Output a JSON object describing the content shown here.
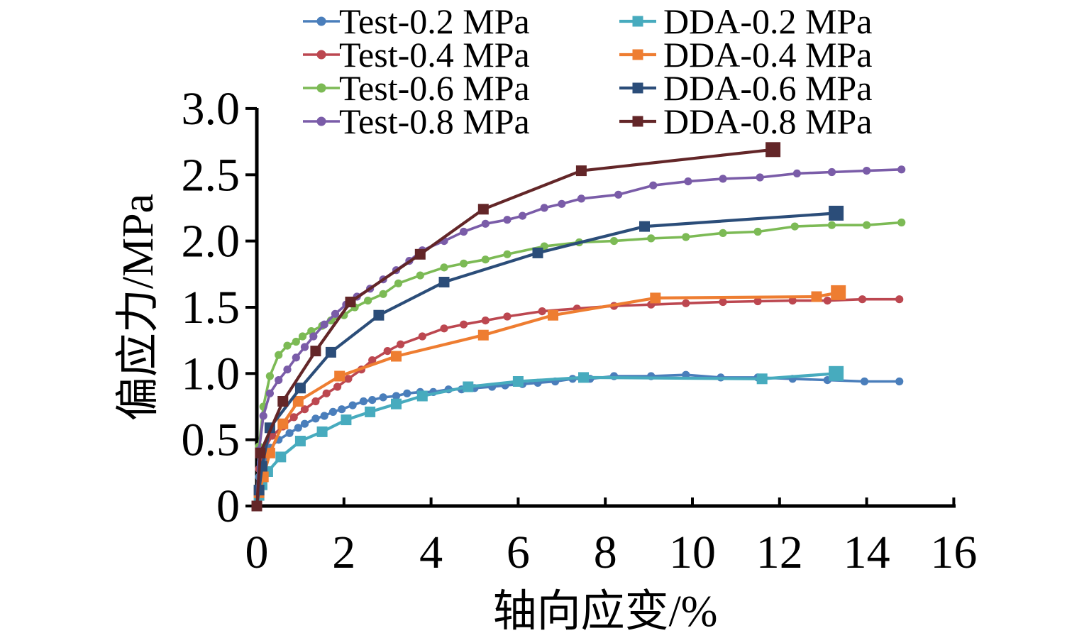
{
  "chart_data": {
    "type": "line",
    "title": "",
    "xlabel": "轴向应变/%",
    "ylabel": "偏应力/MPa",
    "xlim": [
      0,
      16
    ],
    "ylim": [
      0,
      3.0
    ],
    "xticks": [
      0,
      2,
      4,
      6,
      8,
      10,
      12,
      14,
      16
    ],
    "ytick_values": [
      0,
      0.5,
      1.0,
      1.5,
      2.0,
      2.5,
      3.0
    ],
    "ytick_labels": [
      "0",
      "0.5",
      "1.0",
      "1.5",
      "2.0",
      "2.5",
      "3.0"
    ],
    "grid": false,
    "legend_position": "top-center",
    "legend_columns": 2,
    "axis_color": "#000000",
    "series": [
      {
        "name": "Test-0.2 MPa",
        "color": "#4A7EBB",
        "marker": "circle",
        "x": [
          0,
          0.05,
          0.15,
          0.3,
          0.5,
          0.75,
          0.95,
          1.1,
          1.35,
          1.55,
          1.75,
          1.95,
          2.2,
          2.45,
          2.65,
          2.9,
          3.2,
          3.45,
          3.75,
          4.05,
          4.4,
          4.7,
          5.0,
          5.4,
          5.7,
          6.1,
          6.45,
          6.85,
          7.25,
          7.65,
          8.2,
          9.05,
          9.85,
          10.65,
          11.5,
          12.3,
          13.1,
          13.95,
          14.75
        ],
        "y": [
          0,
          0.22,
          0.35,
          0.44,
          0.5,
          0.55,
          0.59,
          0.62,
          0.66,
          0.68,
          0.71,
          0.73,
          0.76,
          0.79,
          0.8,
          0.82,
          0.83,
          0.85,
          0.86,
          0.86,
          0.88,
          0.88,
          0.89,
          0.9,
          0.91,
          0.92,
          0.93,
          0.94,
          0.96,
          0.96,
          0.98,
          0.98,
          0.99,
          0.97,
          0.97,
          0.96,
          0.95,
          0.94,
          0.94
        ]
      },
      {
        "name": "DDA-0.2 MPa",
        "color": "#47ABBE",
        "marker": "square",
        "x": [
          0,
          0.05,
          0.12,
          0.25,
          0.55,
          1.0,
          1.5,
          2.05,
          2.6,
          3.2,
          3.8,
          4.85,
          6.0,
          7.5,
          11.6,
          13.3
        ],
        "y": [
          0,
          0.08,
          0.16,
          0.26,
          0.37,
          0.49,
          0.56,
          0.65,
          0.71,
          0.77,
          0.83,
          0.9,
          0.94,
          0.97,
          0.96,
          1.0
        ]
      },
      {
        "name": "Test-0.4 MPa",
        "color": "#BC4750",
        "marker": "circle",
        "x": [
          0,
          0.05,
          0.15,
          0.35,
          0.6,
          0.85,
          1.1,
          1.35,
          1.6,
          1.85,
          2.1,
          2.4,
          2.65,
          3.0,
          3.3,
          3.8,
          4.3,
          4.75,
          5.25,
          5.75,
          6.55,
          7.35,
          8.2,
          9.05,
          9.85,
          10.7,
          11.5,
          12.3,
          13.1,
          13.9,
          14.75
        ],
        "y": [
          0,
          0.28,
          0.42,
          0.53,
          0.6,
          0.67,
          0.73,
          0.79,
          0.85,
          0.9,
          0.96,
          1.03,
          1.1,
          1.17,
          1.22,
          1.28,
          1.34,
          1.37,
          1.4,
          1.43,
          1.47,
          1.49,
          1.51,
          1.52,
          1.53,
          1.54,
          1.545,
          1.55,
          1.55,
          1.56,
          1.56
        ]
      },
      {
        "name": "DDA-0.4 MPa",
        "color": "#EE7D31",
        "marker": "square",
        "x": [
          0,
          0.05,
          0.15,
          0.3,
          0.6,
          0.95,
          1.9,
          3.2,
          5.2,
          6.8,
          9.15,
          12.85,
          13.35
        ],
        "y": [
          0,
          0.1,
          0.22,
          0.4,
          0.62,
          0.79,
          0.98,
          1.13,
          1.29,
          1.44,
          1.57,
          1.58,
          1.61
        ]
      },
      {
        "name": "Test-0.6 MPa",
        "color": "#7CBA55",
        "marker": "circle",
        "x": [
          0,
          0.05,
          0.15,
          0.3,
          0.5,
          0.7,
          0.9,
          1.05,
          1.25,
          1.5,
          1.7,
          2.0,
          2.25,
          2.55,
          2.9,
          3.25,
          3.75,
          4.3,
          4.75,
          5.25,
          5.75,
          6.6,
          7.4,
          8.2,
          9.05,
          9.85,
          10.7,
          11.5,
          12.35,
          13.2,
          14.0,
          14.8
        ],
        "y": [
          0,
          0.45,
          0.75,
          0.98,
          1.14,
          1.21,
          1.24,
          1.28,
          1.32,
          1.36,
          1.4,
          1.44,
          1.5,
          1.55,
          1.6,
          1.68,
          1.74,
          1.8,
          1.83,
          1.86,
          1.9,
          1.96,
          1.99,
          2.0,
          2.02,
          2.03,
          2.06,
          2.07,
          2.11,
          2.12,
          2.12,
          2.14
        ]
      },
      {
        "name": "DDA-0.6 MPa",
        "color": "#2B4D79",
        "marker": "square",
        "x": [
          0,
          0.05,
          0.12,
          0.3,
          1.0,
          1.7,
          2.8,
          4.3,
          6.45,
          8.9,
          13.3
        ],
        "y": [
          0,
          0.12,
          0.3,
          0.59,
          0.89,
          1.16,
          1.44,
          1.69,
          1.91,
          2.11,
          2.21
        ]
      },
      {
        "name": "Test-0.8 MPa",
        "color": "#7A5CA8",
        "marker": "circle",
        "x": [
          0,
          0.05,
          0.15,
          0.3,
          0.5,
          0.7,
          0.9,
          1.1,
          1.3,
          1.55,
          1.8,
          2.05,
          2.3,
          2.6,
          2.9,
          3.2,
          3.5,
          3.8,
          4.3,
          4.75,
          5.25,
          5.75,
          6.1,
          6.6,
          7.0,
          7.45,
          8.3,
          9.1,
          9.9,
          10.7,
          11.55,
          12.4,
          13.2,
          14.0,
          14.8
        ],
        "y": [
          0,
          0.42,
          0.68,
          0.85,
          0.95,
          1.03,
          1.12,
          1.2,
          1.28,
          1.37,
          1.45,
          1.52,
          1.58,
          1.64,
          1.71,
          1.78,
          1.85,
          1.93,
          2.0,
          2.07,
          2.13,
          2.16,
          2.19,
          2.25,
          2.28,
          2.32,
          2.35,
          2.42,
          2.45,
          2.47,
          2.48,
          2.51,
          2.52,
          2.53,
          2.54
        ]
      },
      {
        "name": "DDA-0.8 MPa",
        "color": "#632628",
        "marker": "square",
        "x": [
          0,
          0.08,
          0.6,
          1.35,
          2.15,
          3.75,
          5.2,
          7.45,
          11.85
        ],
        "y": [
          0,
          0.4,
          0.79,
          1.17,
          1.54,
          1.9,
          2.24,
          2.53,
          2.69
        ]
      }
    ]
  }
}
